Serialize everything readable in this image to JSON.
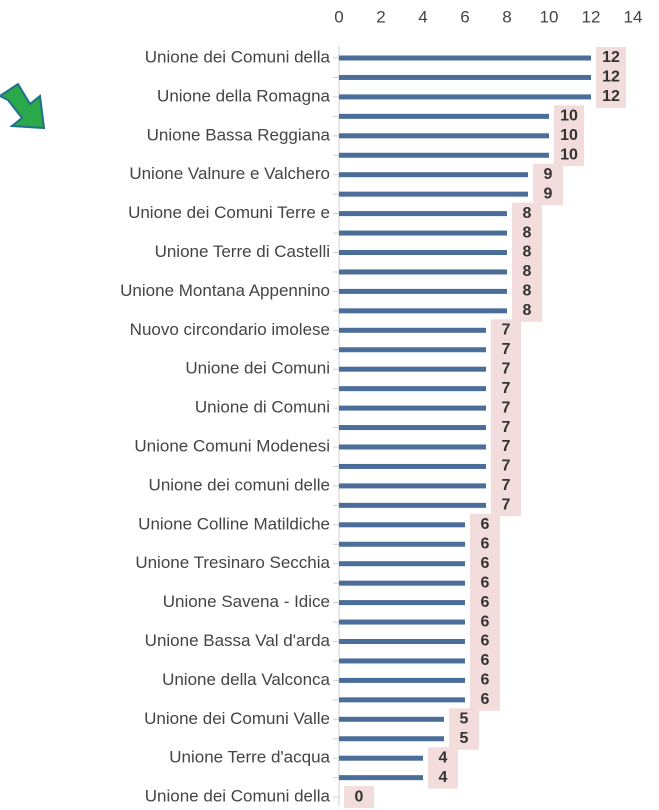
{
  "chart_data": {
    "type": "barh",
    "categories": [
      "Unione dei Comuni della",
      null,
      "Unione della Romagna",
      null,
      "Unione Bassa Reggiana",
      null,
      "Unione Valnure e Valchero",
      null,
      "Unione dei Comuni Terre e",
      null,
      "Unione Terre di Castelli",
      null,
      "Unione Montana Appennino",
      null,
      "Nuovo circondario imolese",
      null,
      "Unione dei Comuni",
      null,
      "Unione di Comuni",
      null,
      "Unione Comuni Modenesi",
      null,
      "Unione dei comuni delle",
      null,
      "Unione Colline Matildiche",
      null,
      "Unione Tresinaro Secchia",
      null,
      "Unione Savena - Idice",
      null,
      "Unione Bassa Val d'arda",
      null,
      "Unione della Valconca",
      null,
      "Unione dei Comuni Valle",
      null,
      "Unione Terre d'acqua",
      null,
      "Unione dei Comuni della"
    ],
    "values": [
      12,
      12,
      12,
      10,
      10,
      10,
      9,
      9,
      8,
      8,
      8,
      8,
      8,
      8,
      7,
      7,
      7,
      7,
      7,
      7,
      7,
      7,
      7,
      7,
      6,
      6,
      6,
      6,
      6,
      6,
      6,
      6,
      6,
      6,
      5,
      5,
      4,
      4,
      0
    ],
    "color": "#4a6d9a",
    "label_box_color": "#f3dcdc",
    "xlim": [
      0,
      14
    ],
    "xticks": [
      0,
      2,
      4,
      6,
      8,
      10,
      12,
      14
    ],
    "grid": false
  }
}
